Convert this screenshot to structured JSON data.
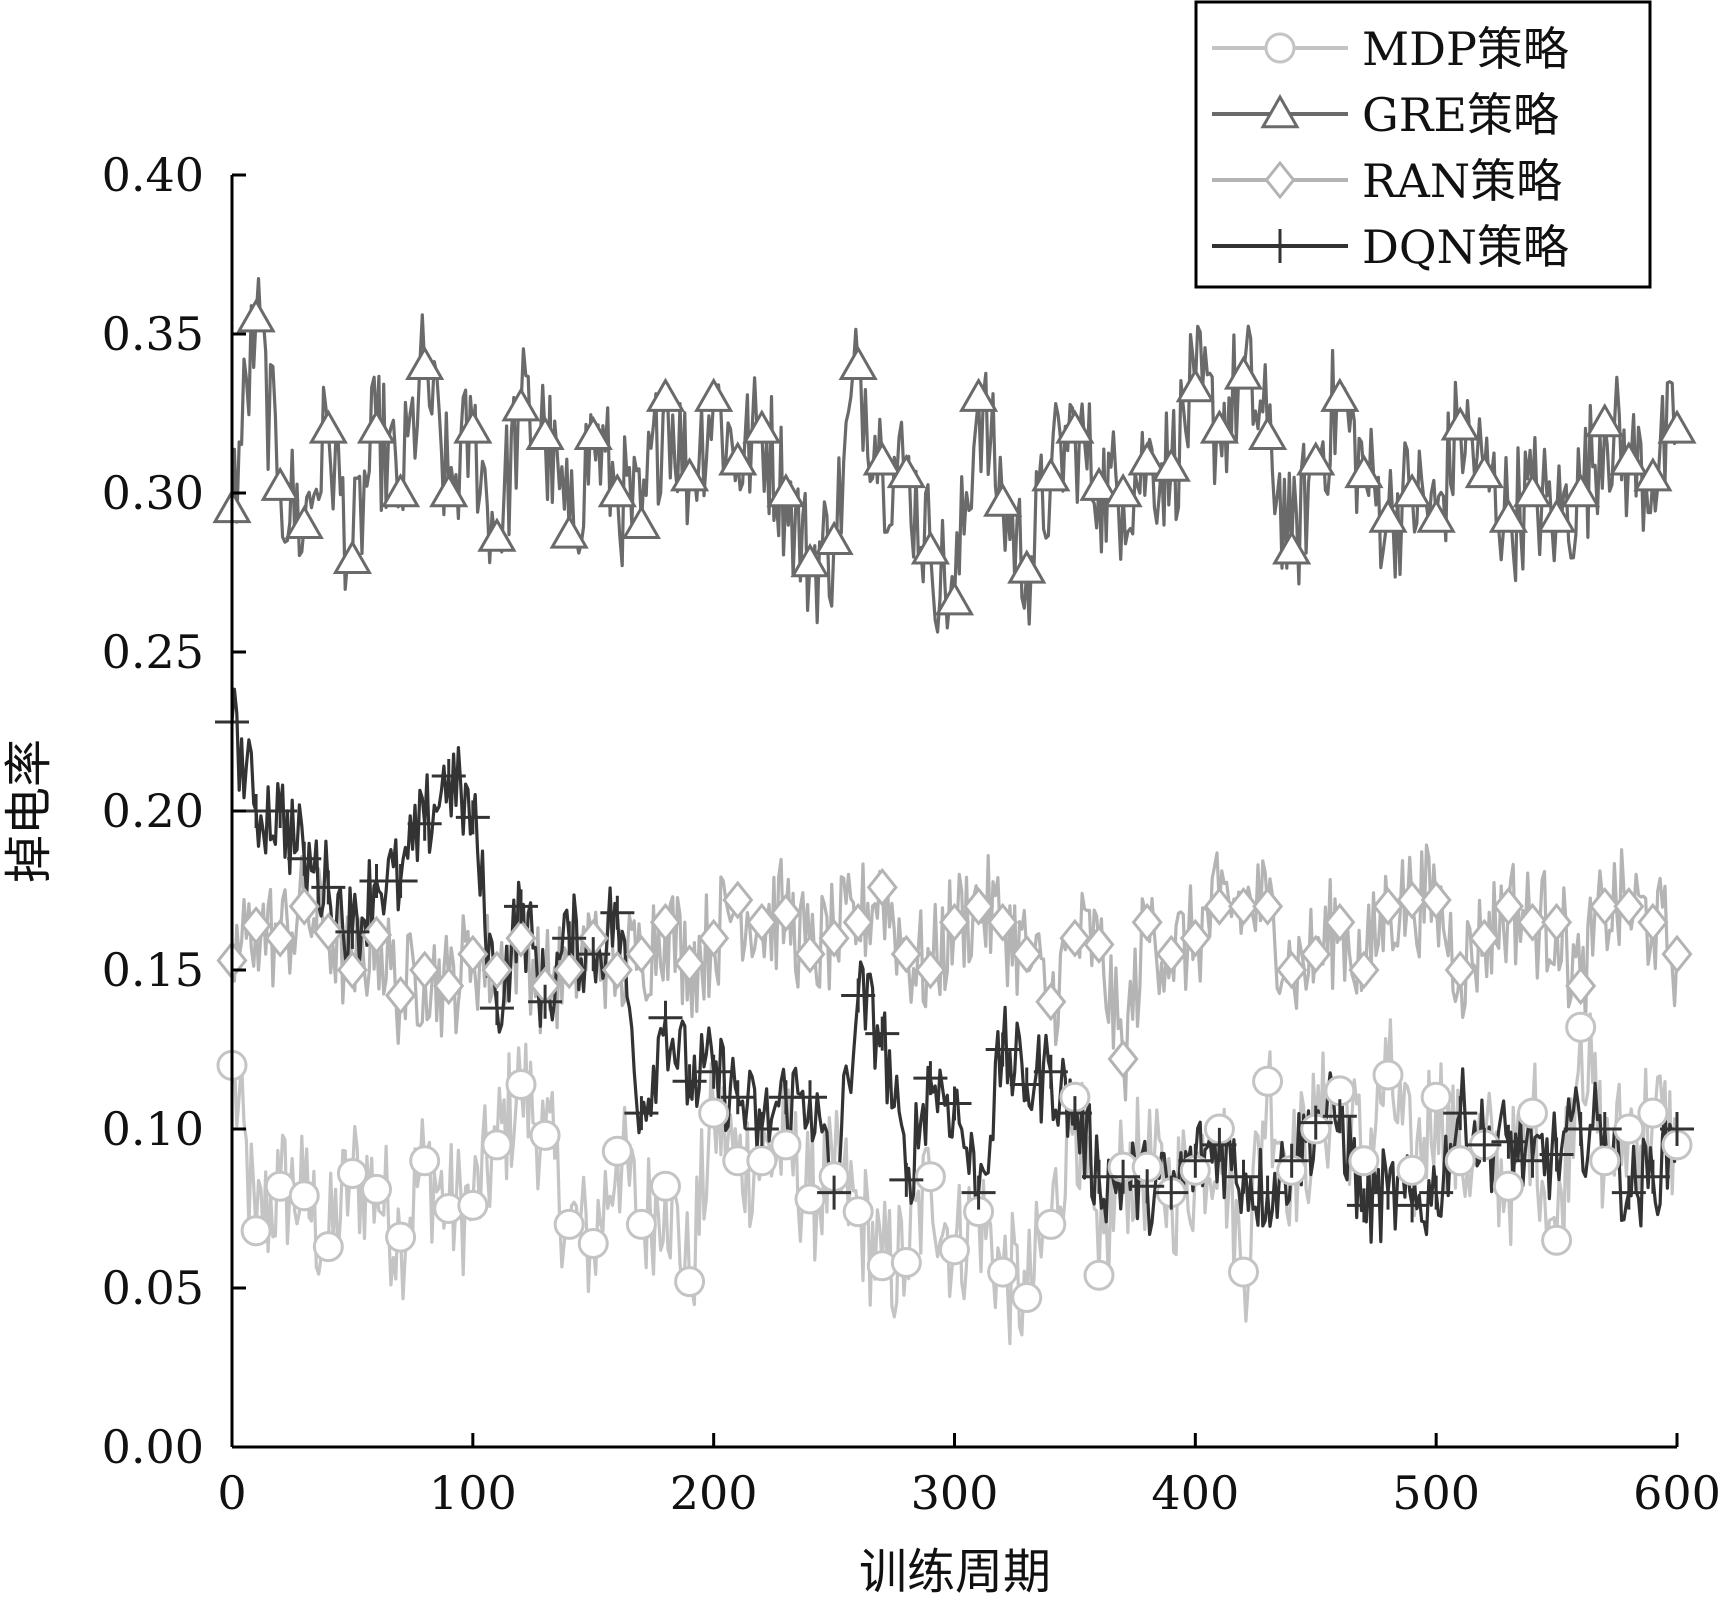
{
  "chart_data": {
    "type": "line",
    "title": "",
    "xlabel": "训练周期",
    "ylabel": "掉电率",
    "xlim": [
      0,
      600
    ],
    "ylim": [
      0,
      0.4
    ],
    "x_ticks": [
      0,
      100,
      200,
      300,
      400,
      500,
      600
    ],
    "x_tick_labels": [
      "0",
      "100",
      "200",
      "300",
      "400",
      "500",
      "600"
    ],
    "y_ticks": [
      0,
      0.05,
      0.1,
      0.15,
      0.2,
      0.25,
      0.3,
      0.35,
      0.4
    ],
    "y_tick_labels": [
      "0.00",
      "0.05",
      "0.10",
      "0.15",
      "0.20",
      "0.25",
      "0.30",
      "0.35",
      "0.40"
    ],
    "grid": false,
    "legend_position": "top-right",
    "x": [
      0,
      10,
      20,
      30,
      40,
      50,
      60,
      70,
      80,
      90,
      100,
      110,
      120,
      130,
      140,
      150,
      160,
      170,
      180,
      190,
      200,
      210,
      220,
      230,
      240,
      250,
      260,
      270,
      280,
      290,
      300,
      310,
      320,
      330,
      340,
      350,
      360,
      370,
      380,
      390,
      400,
      410,
      420,
      430,
      440,
      450,
      460,
      470,
      480,
      490,
      500,
      510,
      520,
      530,
      540,
      550,
      560,
      570,
      580,
      590,
      600
    ],
    "series": [
      {
        "name": "MDP策略",
        "color": "#c4c4c4",
        "marker": "circle",
        "noise": 0.022,
        "values": [
          0.12,
          0.068,
          0.082,
          0.079,
          0.063,
          0.086,
          0.081,
          0.066,
          0.09,
          0.075,
          0.076,
          0.095,
          0.114,
          0.098,
          0.07,
          0.064,
          0.093,
          0.07,
          0.082,
          0.052,
          0.105,
          0.09,
          0.09,
          0.095,
          0.078,
          0.085,
          0.074,
          0.057,
          0.058,
          0.085,
          0.062,
          0.074,
          0.055,
          0.047,
          0.07,
          0.11,
          0.054,
          0.088,
          0.088,
          0.08,
          0.087,
          0.1,
          0.055,
          0.115,
          0.087,
          0.1,
          0.112,
          0.09,
          0.117,
          0.087,
          0.11,
          0.09,
          0.095,
          0.082,
          0.105,
          0.065,
          0.132,
          0.09,
          0.1,
          0.105,
          0.095
        ]
      },
      {
        "name": "GRE策略",
        "color": "#6a6a6a",
        "marker": "triangle",
        "noise": 0.022,
        "values": [
          0.295,
          0.355,
          0.302,
          0.29,
          0.32,
          0.279,
          0.32,
          0.3,
          0.34,
          0.3,
          0.32,
          0.286,
          0.327,
          0.318,
          0.287,
          0.318,
          0.3,
          0.29,
          0.33,
          0.305,
          0.33,
          0.31,
          0.32,
          0.3,
          0.278,
          0.285,
          0.34,
          0.31,
          0.306,
          0.282,
          0.266,
          0.33,
          0.297,
          0.276,
          0.305,
          0.32,
          0.302,
          0.3,
          0.31,
          0.308,
          0.333,
          0.32,
          0.337,
          0.318,
          0.282,
          0.31,
          0.33,
          0.306,
          0.292,
          0.3,
          0.292,
          0.321,
          0.306,
          0.292,
          0.3,
          0.292,
          0.3,
          0.322,
          0.31,
          0.305,
          0.32
        ]
      },
      {
        "name": "RAN策略",
        "color": "#b4b4b4",
        "marker": "diamond",
        "noise": 0.018,
        "values": [
          0.153,
          0.164,
          0.16,
          0.17,
          0.162,
          0.15,
          0.161,
          0.142,
          0.15,
          0.145,
          0.155,
          0.15,
          0.16,
          0.145,
          0.15,
          0.16,
          0.15,
          0.155,
          0.165,
          0.152,
          0.16,
          0.172,
          0.165,
          0.168,
          0.155,
          0.16,
          0.165,
          0.176,
          0.155,
          0.15,
          0.165,
          0.17,
          0.165,
          0.155,
          0.14,
          0.16,
          0.158,
          0.122,
          0.165,
          0.155,
          0.16,
          0.17,
          0.17,
          0.17,
          0.15,
          0.155,
          0.165,
          0.15,
          0.17,
          0.172,
          0.172,
          0.15,
          0.16,
          0.17,
          0.165,
          0.165,
          0.145,
          0.17,
          0.17,
          0.165,
          0.155
        ]
      },
      {
        "name": "DQN策略",
        "color": "#333333",
        "marker": "plus",
        "noise": 0.015,
        "values": [
          0.228,
          0.2,
          0.2,
          0.185,
          0.176,
          0.162,
          0.178,
          0.178,
          0.196,
          0.211,
          0.198,
          0.138,
          0.17,
          0.14,
          0.16,
          0.155,
          0.168,
          0.105,
          0.135,
          0.115,
          0.118,
          0.11,
          0.1,
          0.11,
          0.11,
          0.08,
          0.142,
          0.13,
          0.084,
          0.116,
          0.108,
          0.08,
          0.125,
          0.114,
          0.118,
          0.105,
          0.085,
          0.085,
          0.082,
          0.08,
          0.09,
          0.095,
          0.085,
          0.08,
          0.09,
          0.102,
          0.104,
          0.076,
          0.08,
          0.076,
          0.08,
          0.105,
          0.095,
          0.096,
          0.09,
          0.092,
          0.1,
          0.1,
          0.08,
          0.085,
          0.1
        ]
      }
    ]
  }
}
